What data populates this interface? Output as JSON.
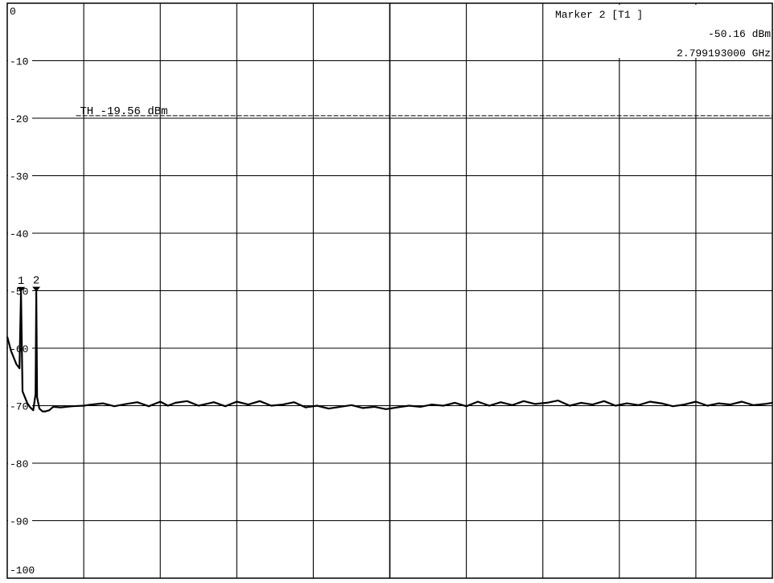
{
  "chart_data": {
    "type": "line",
    "title": "",
    "xlabel": "",
    "ylabel": "",
    "ylim": [
      -100,
      0
    ],
    "y_ticks": [
      "0",
      "-10",
      "-20",
      "-30",
      "-40",
      "-50",
      "-60",
      "-70",
      "-80",
      "-90",
      "-100"
    ],
    "grid": true,
    "marker_readout": {
      "title": "Marker 2 [T1 ]",
      "level": "-50.16 dBm",
      "frequency": "2.799193000 GHz"
    },
    "threshold": {
      "label": "TH -19.56 dBm",
      "value": -19.56
    },
    "markers": [
      {
        "label": "1",
        "division": 0.18,
        "value": -50.2
      },
      {
        "label": "2",
        "division": 0.38,
        "value": -50.16
      }
    ],
    "series": [
      {
        "x_divisions": [
          0,
          0.05,
          0.12,
          0.16,
          0.18,
          0.2,
          0.23,
          0.26,
          0.3,
          0.34,
          0.37,
          0.38,
          0.39,
          0.42,
          0.46,
          0.5,
          0.55,
          0.6,
          0.7,
          0.85,
          1,
          1.1,
          1.25,
          1.4,
          1.55,
          1.7,
          1.85,
          2,
          2.1,
          2.2,
          2.35,
          2.5,
          2.7,
          2.85,
          3,
          3.15,
          3.3,
          3.45,
          3.6,
          3.75,
          3.9,
          4.05,
          4.2,
          4.35,
          4.5,
          4.65,
          4.8,
          4.95,
          5.1,
          5.25,
          5.4,
          5.55,
          5.7,
          5.85,
          6,
          6.15,
          6.3,
          6.45,
          6.6,
          6.75,
          6.9,
          7.05,
          7.2,
          7.35,
          7.5,
          7.65,
          7.8,
          7.95,
          8.1,
          8.25,
          8.4,
          8.55,
          8.7,
          8.85,
          9,
          9.15,
          9.3,
          9.45,
          9.6,
          9.75,
          9.9,
          10
        ],
        "values": [
          -58,
          -60.5,
          -62.8,
          -63.5,
          -50.2,
          -67.5,
          -68.5,
          -69.5,
          -70.3,
          -70.8,
          -68,
          -50.16,
          -68.5,
          -70.5,
          -71,
          -71,
          -70.8,
          -70.2,
          -70.3,
          -70.1,
          -70,
          -69.8,
          -69.6,
          -70.1,
          -69.7,
          -69.4,
          -70.1,
          -69.3,
          -70,
          -69.5,
          -69.2,
          -70,
          -69.4,
          -70.1,
          -69.3,
          -69.8,
          -69.2,
          -70,
          -69.8,
          -69.4,
          -70.3,
          -70,
          -70.5,
          -70.2,
          -69.9,
          -70.4,
          -70.2,
          -70.6,
          -70.3,
          -70,
          -70.2,
          -69.8,
          -70,
          -69.5,
          -70.1,
          -69.3,
          -70,
          -69.4,
          -69.9,
          -69.2,
          -69.7,
          -69.5,
          -69.1,
          -70,
          -69.5,
          -69.8,
          -69.2,
          -70,
          -69.6,
          -69.9,
          -69.3,
          -69.6,
          -70.1,
          -69.8,
          -69.3,
          -70,
          -69.6,
          -69.8,
          -69.3,
          -69.9,
          -69.7,
          -69.5
        ]
      }
    ]
  }
}
